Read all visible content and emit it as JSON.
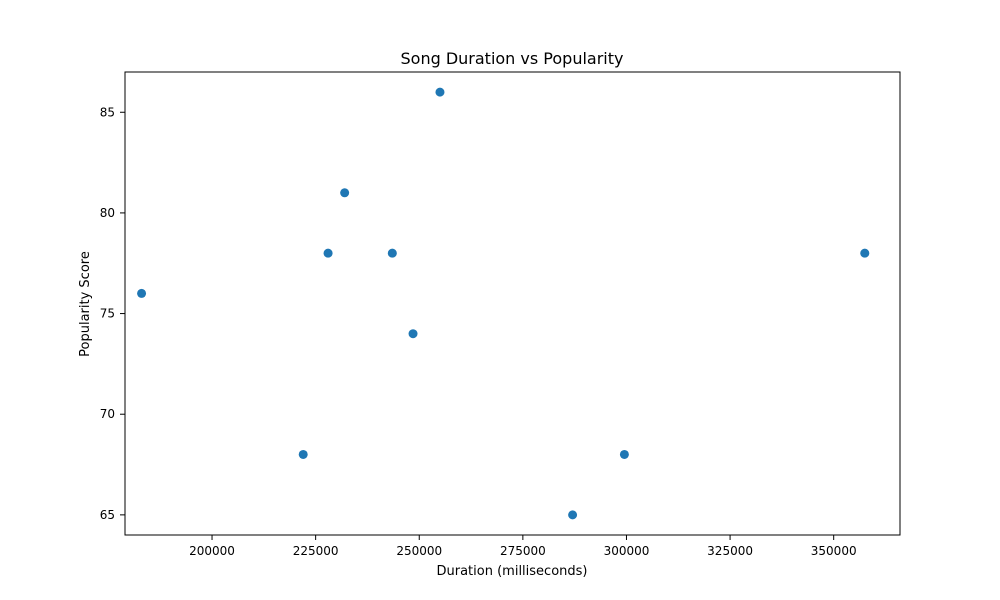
{
  "chart_data": {
    "type": "scatter",
    "title": "Song Duration vs Popularity",
    "xlabel": "Duration (milliseconds)",
    "ylabel": "Popularity Score",
    "xlim": [
      179000,
      366000
    ],
    "ylim": [
      64,
      87
    ],
    "x_ticks": [
      200000,
      225000,
      250000,
      275000,
      300000,
      325000,
      350000
    ],
    "y_ticks": [
      65,
      70,
      75,
      80,
      85
    ],
    "grid": false,
    "marker_color": "#1f77b4",
    "points": [
      {
        "x": 183000,
        "y": 76
      },
      {
        "x": 222000,
        "y": 68
      },
      {
        "x": 228000,
        "y": 78
      },
      {
        "x": 232000,
        "y": 81
      },
      {
        "x": 243500,
        "y": 78
      },
      {
        "x": 248500,
        "y": 74
      },
      {
        "x": 255000,
        "y": 86
      },
      {
        "x": 287000,
        "y": 65
      },
      {
        "x": 299500,
        "y": 68
      },
      {
        "x": 357500,
        "y": 78
      }
    ]
  }
}
